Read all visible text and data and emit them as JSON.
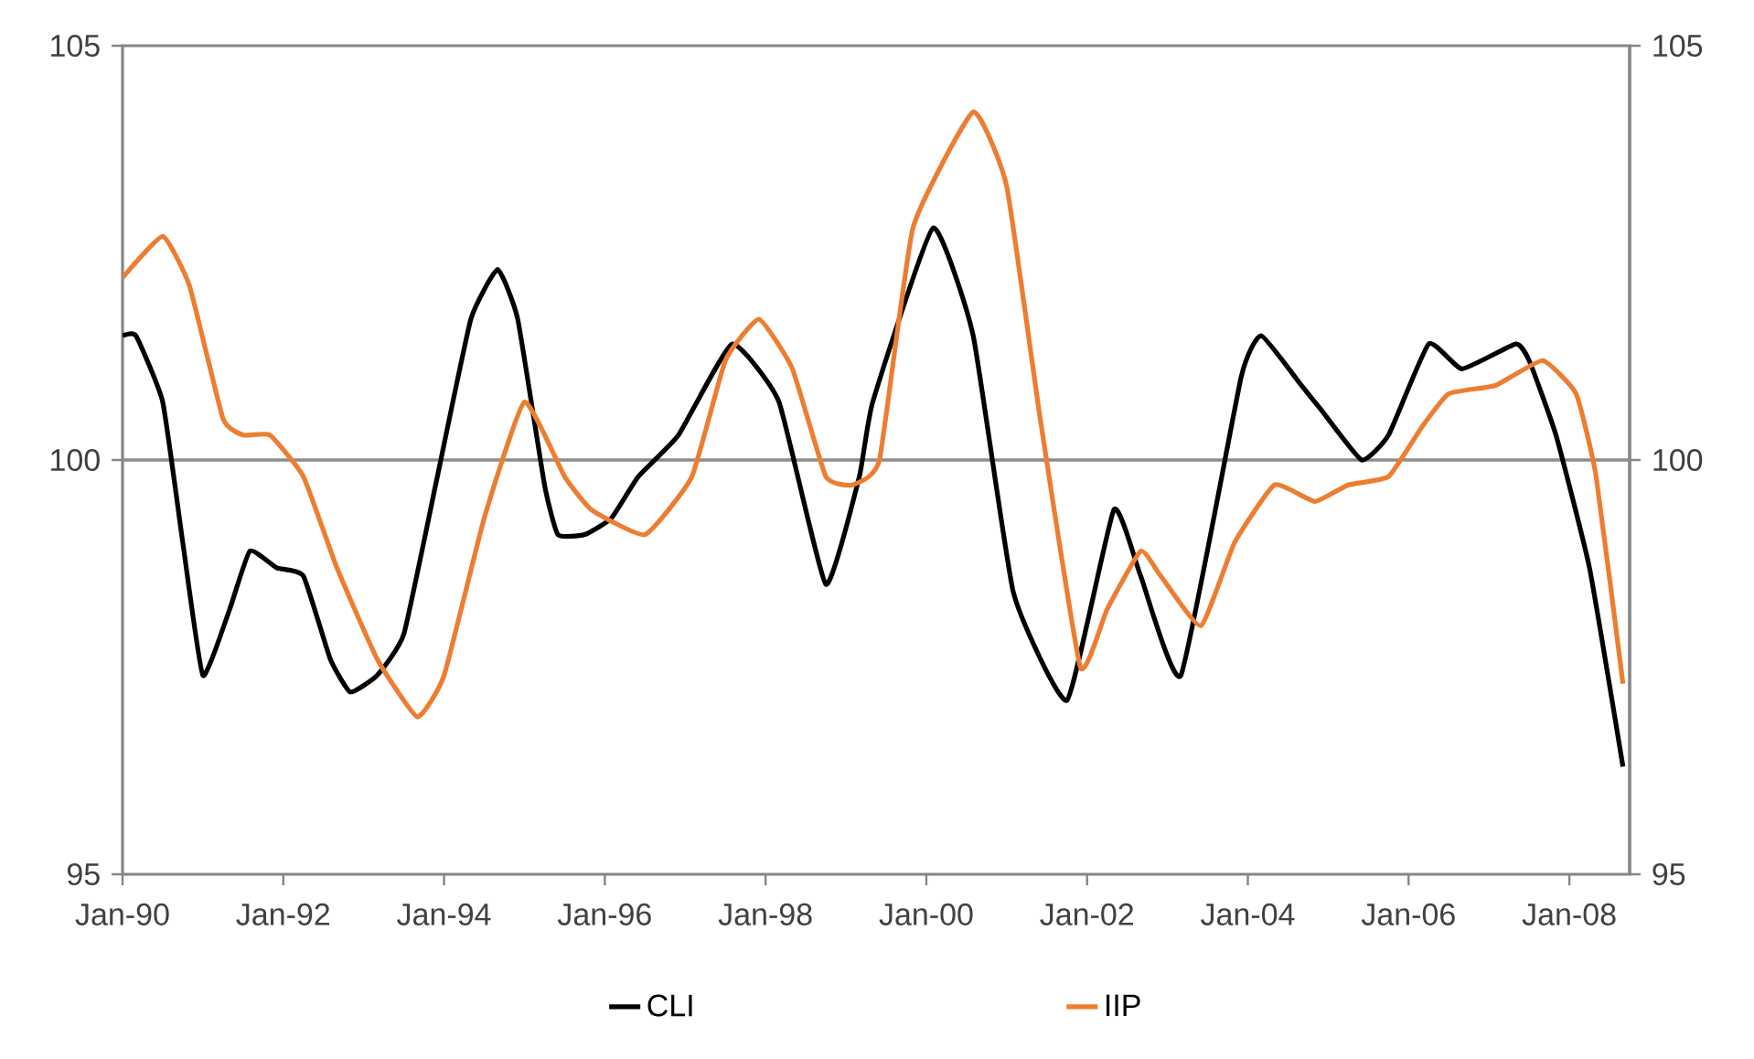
{
  "chart_data": {
    "type": "line",
    "xlim": [
      "1990-01",
      "2008-10"
    ],
    "xticks": [
      {
        "value": "1990-01",
        "label": "Jan-90"
      },
      {
        "value": "1992-01",
        "label": "Jan-92"
      },
      {
        "value": "1994-01",
        "label": "Jan-94"
      },
      {
        "value": "1996-01",
        "label": "Jan-96"
      },
      {
        "value": "1998-01",
        "label": "Jan-98"
      },
      {
        "value": "2000-01",
        "label": "Jan-00"
      },
      {
        "value": "2002-01",
        "label": "Jan-02"
      },
      {
        "value": "2004-01",
        "label": "Jan-04"
      },
      {
        "value": "2006-01",
        "label": "Jan-06"
      },
      {
        "value": "2008-01",
        "label": "Jan-08"
      }
    ],
    "ylim": [
      95,
      105
    ],
    "yticks": [
      95,
      100,
      105
    ],
    "y2lim": [
      95,
      105
    ],
    "y2ticks": [
      95,
      100,
      105
    ],
    "legend": "bottom",
    "ref_lines": [
      {
        "axis": "y",
        "value": 100,
        "color": "#8c8c8c"
      }
    ],
    "series": [
      {
        "name": "CLI",
        "color": "#000000",
        "x": [
          "1990-01",
          "1990-03",
          "1990-07",
          "1990-10",
          "1991-01",
          "1991-05",
          "1991-08",
          "1991-12",
          "1992-04",
          "1992-08",
          "1992-11",
          "1993-03",
          "1993-07",
          "1993-12",
          "1994-05",
          "1994-09",
          "1994-12",
          "1995-04",
          "1995-06",
          "1995-10",
          "1996-02",
          "1996-06",
          "1996-12",
          "1997-08",
          "1998-03",
          "1998-10",
          "1999-03",
          "1999-05",
          "2000-02",
          "2000-08",
          "2001-02",
          "2001-10",
          "2002-05",
          "2002-09",
          "2003-03",
          "2003-12",
          "2004-03",
          "2004-09",
          "2004-12",
          "2005-06",
          "2005-10",
          "2006-04",
          "2006-09",
          "2007-05",
          "2007-07",
          "2007-11",
          "2008-04",
          "2008-09"
        ],
        "values": [
          101.5,
          101.5,
          100.7,
          99.0,
          97.4,
          98.2,
          98.9,
          98.7,
          98.6,
          97.6,
          97.2,
          97.4,
          97.9,
          99.8,
          101.7,
          102.3,
          101.7,
          99.7,
          99.1,
          99.1,
          99.3,
          99.8,
          100.3,
          101.4,
          100.7,
          98.5,
          99.8,
          100.7,
          102.8,
          101.5,
          98.4,
          97.1,
          99.4,
          98.6,
          97.4,
          101.0,
          101.5,
          100.9,
          100.6,
          100.0,
          100.3,
          101.4,
          101.1,
          101.4,
          101.2,
          100.3,
          98.7,
          96.3
        ]
      },
      {
        "name": "IIP",
        "color": "#ed7d31",
        "x": [
          "1990-01",
          "1990-07",
          "1990-11",
          "1991-04",
          "1991-07",
          "1991-11",
          "1992-04",
          "1992-09",
          "1993-03",
          "1993-09",
          "1994-01",
          "1994-07",
          "1995-01",
          "1995-07",
          "1995-11",
          "1996-07",
          "1997-02",
          "1997-07",
          "1997-12",
          "1998-05",
          "1998-10",
          "1999-02",
          "1999-06",
          "1999-11",
          "2000-08",
          "2001-01",
          "2001-06",
          "2001-12",
          "2002-04",
          "2002-09",
          "2002-12",
          "2003-06",
          "2003-11",
          "2004-05",
          "2004-11",
          "2005-04",
          "2005-10",
          "2006-03",
          "2006-07",
          "2007-02",
          "2007-09",
          "2008-02",
          "2008-05",
          "2008-09"
        ],
        "values": [
          102.2,
          102.7,
          102.1,
          100.5,
          100.3,
          100.3,
          99.8,
          98.7,
          97.6,
          96.9,
          97.4,
          99.3,
          100.7,
          99.8,
          99.4,
          99.1,
          99.8,
          101.2,
          101.7,
          101.1,
          99.8,
          99.7,
          100.0,
          102.8,
          104.2,
          103.3,
          100.5,
          97.5,
          98.2,
          98.9,
          98.6,
          98.0,
          99.0,
          99.7,
          99.5,
          99.7,
          99.8,
          100.4,
          100.8,
          100.9,
          101.2,
          100.8,
          99.8,
          97.3
        ]
      }
    ]
  }
}
